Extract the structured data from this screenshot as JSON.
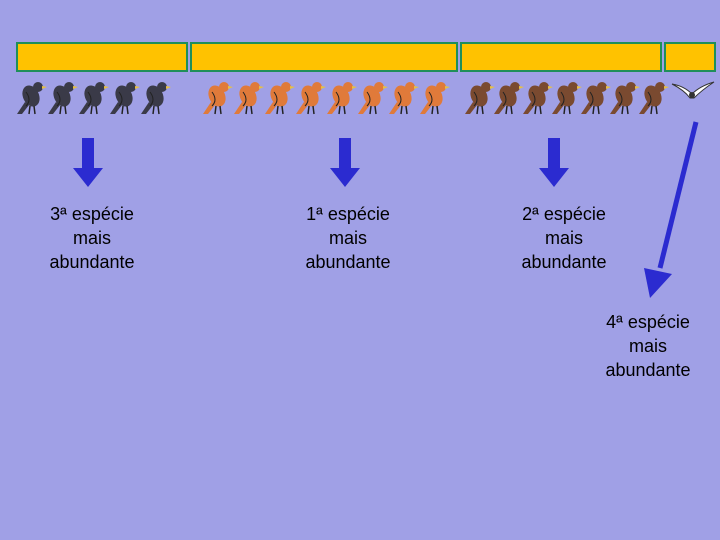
{
  "segments": [
    {
      "name": "species-3-segment",
      "color": "#ffc200"
    },
    {
      "name": "species-1-segment",
      "color": "#ffc200"
    },
    {
      "name": "species-2-segment",
      "color": "#ffc200"
    },
    {
      "name": "species-4-segment",
      "color": "#ffc200"
    }
  ],
  "species": [
    {
      "label": "3ª espécie\nmais\nabundante",
      "count": 5,
      "bird_icon": "sparrow-icon",
      "color": "#3a3a48"
    },
    {
      "label": "1ª espécie\nmais\nabundante",
      "count": 8,
      "bird_icon": "finch-icon",
      "color": "#e07a3a"
    },
    {
      "label": "2ª espécie\nmais\nabundante",
      "count": 7,
      "bird_icon": "robin-icon",
      "color": "#7a4a30"
    },
    {
      "label": "4ª espécie\nmais\nabundante",
      "count": 1,
      "bird_icon": "gull-icon",
      "color": "#ffffff"
    }
  ],
  "arrow_color": "#2b2bd0"
}
